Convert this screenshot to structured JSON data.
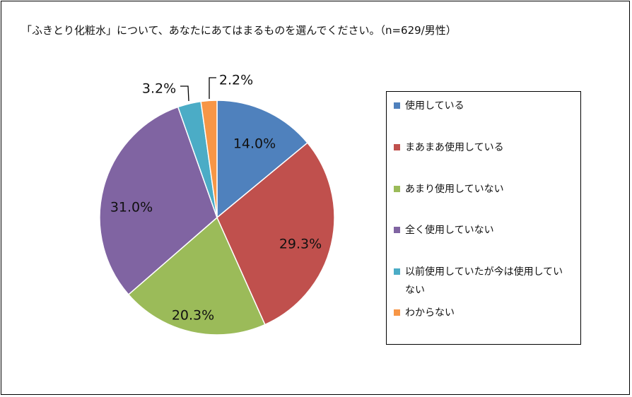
{
  "chart_data": {
    "type": "pie",
    "title": "「ふきとり化粧水」について、あなたにあてはまるものを選んでください。（n=629/男性）",
    "slices": [
      {
        "name": "使用している",
        "value": 14.0,
        "label": "14.0%",
        "color": "#4F81BD"
      },
      {
        "name": "まあまあ使用している",
        "value": 29.3,
        "label": "29.3%",
        "color": "#C0504D"
      },
      {
        "name": "あまり使用していない",
        "value": 20.3,
        "label": "20.3%",
        "color": "#9BBB59"
      },
      {
        "name": "全く使用していない",
        "value": 31.0,
        "label": "31.0%",
        "color": "#8064A2"
      },
      {
        "name": "以前使用していたが今は使用していない",
        "value": 3.2,
        "label": "3.2%",
        "color": "#4BACC6"
      },
      {
        "name": "わからない",
        "value": 2.2,
        "label": "2.2%",
        "color": "#F79646"
      }
    ],
    "legend_placement": "right",
    "start_angle": "12 o'clock",
    "direction": "clockwise"
  }
}
